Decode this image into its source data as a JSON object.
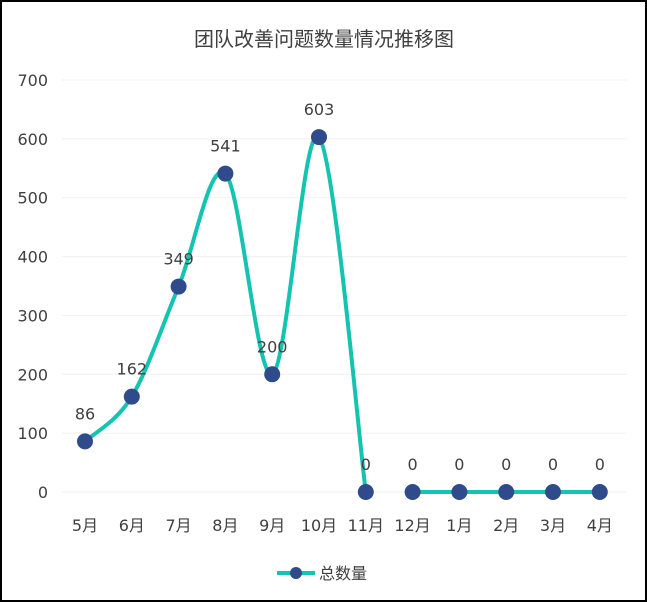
{
  "chart_data": {
    "type": "line",
    "title": "团队改善问题数量情况推移图",
    "categories": [
      "5月",
      "6月",
      "7月",
      "8月",
      "9月",
      "10月",
      "11月",
      "12月",
      "1月",
      "2月",
      "3月",
      "4月"
    ],
    "series": [
      {
        "name": "总数量",
        "values": [
          86,
          162,
          349,
          541,
          200,
          603,
          0,
          0,
          0,
          0,
          0,
          0
        ]
      }
    ],
    "ylim": [
      0,
      700
    ],
    "yticks": [
      0,
      100,
      200,
      300,
      400,
      500,
      600,
      700
    ],
    "grid": true,
    "smooth": true,
    "data_labels": true,
    "legend": "bottom",
    "colors": {
      "line": "#14c4b0",
      "marker": "#2f4b8c",
      "grid": "#f0f0f0",
      "text": "#404040"
    }
  }
}
